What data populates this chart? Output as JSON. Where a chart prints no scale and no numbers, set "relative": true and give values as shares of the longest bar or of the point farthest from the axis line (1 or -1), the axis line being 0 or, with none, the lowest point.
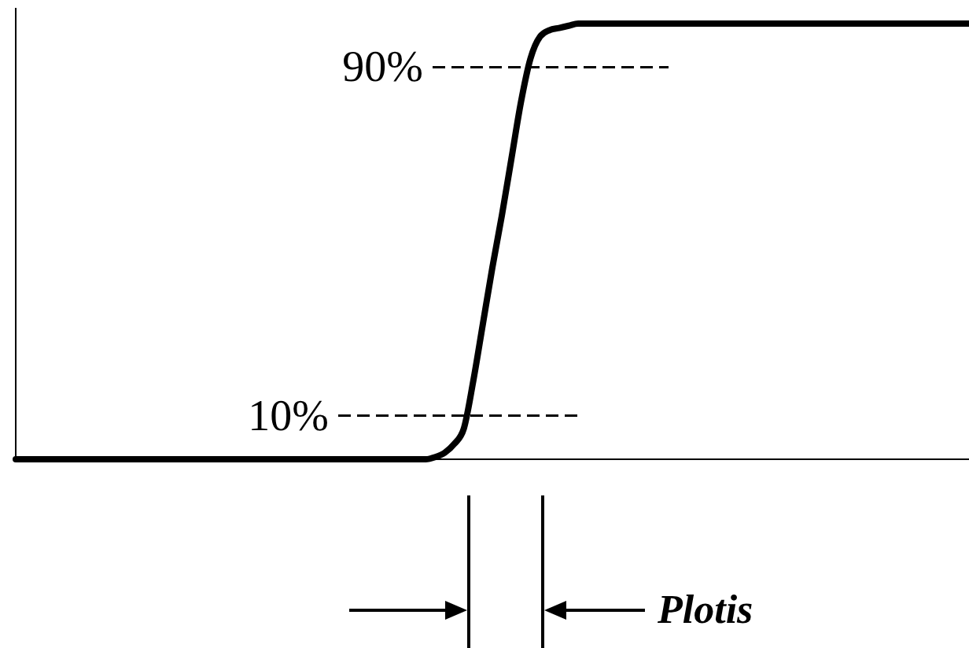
{
  "chart_data": {
    "type": "line",
    "relative": true,
    "categories": [
      null,
      null,
      null,
      null,
      null,
      null,
      null,
      null,
      null,
      null,
      null,
      null,
      null,
      null,
      null,
      null,
      null,
      null,
      null,
      null,
      null,
      null,
      null,
      null,
      null,
      null,
      null,
      null,
      null,
      null,
      null,
      null,
      null,
      null,
      null,
      null,
      null,
      null,
      null,
      null,
      null,
      null,
      null,
      null,
      null,
      null,
      null,
      null,
      null,
      null,
      null,
      null,
      null,
      null,
      null,
      null,
      null,
      null,
      null,
      null,
      null,
      null,
      null,
      null,
      null,
      null,
      null,
      null,
      null,
      null,
      null,
      null,
      null,
      null,
      null,
      null,
      null,
      null,
      null,
      null,
      null,
      null,
      null,
      null,
      null,
      null,
      null,
      null,
      null,
      null,
      null,
      null,
      null,
      null,
      null,
      null,
      null,
      null,
      null,
      null,
      null
    ],
    "series": [
      {
        "color": "#000000",
        "values": [
          0,
          0,
          0,
          0,
          0,
          0,
          0,
          0,
          0,
          0,
          0,
          0,
          0,
          0,
          0,
          0,
          0,
          0,
          0,
          0,
          0,
          0,
          0,
          0,
          0,
          0,
          0,
          0,
          0,
          0,
          0,
          0,
          0,
          0,
          0,
          0,
          0,
          0,
          0,
          0,
          0,
          0,
          0,
          0,
          0.005,
          0.015,
          0.035,
          0.07,
          0.18,
          0.31,
          0.44,
          0.56,
          0.69,
          0.82,
          0.92,
          0.97,
          0.985,
          0.99,
          0.995,
          1,
          1,
          1,
          1,
          1,
          1,
          1,
          1,
          1,
          1,
          1,
          1,
          1,
          1,
          1,
          1,
          1,
          1,
          1,
          1,
          1,
          1,
          1,
          1,
          1,
          1,
          1,
          1,
          1,
          1,
          1,
          1,
          1,
          1,
          1,
          1,
          1,
          1,
          1,
          1,
          1,
          1
        ]
      }
    ],
    "ref_lines": [
      {
        "axis": "y",
        "value": 0.9,
        "label": "90%",
        "line_style": "dashed"
      },
      {
        "axis": "y",
        "value": 0.1,
        "label": "10%",
        "line_style": "dashed"
      }
    ],
    "annotations": [
      "Plotis"
    ],
    "marker": "none",
    "line_style": "solid"
  }
}
